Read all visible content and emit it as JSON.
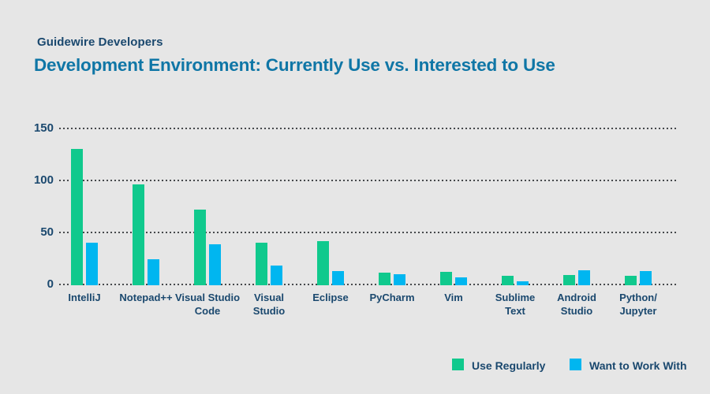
{
  "header": {
    "eyebrow": "Guidewire Developers",
    "title": "Development Environment: Currently Use vs. Interested to Use"
  },
  "colors": {
    "background": "#E6E6E6",
    "eyebrow_text": "#1A486E",
    "title_text": "#0F76A6",
    "axis_text": "#1A486E",
    "grid_dots": "#46494C",
    "series_green": "#10C98D",
    "series_blue": "#00B6F0"
  },
  "chart_data": {
    "type": "bar",
    "title": "Development Environment: Currently Use vs. Interested to Use",
    "subtitle": "Guidewire Developers",
    "categories": [
      "IntelliJ",
      "Notepad++",
      "Visual Studio Code",
      "Visual Studio",
      "Eclipse",
      "PyCharm",
      "Vim",
      "Sublime Text",
      "Android Studio",
      "Python/Jupyter"
    ],
    "category_label_lines": [
      [
        "IntelliJ"
      ],
      [
        "Notepad++"
      ],
      [
        "Visual Studio",
        "Code"
      ],
      [
        "Visual",
        "Studio"
      ],
      [
        "Eclipse"
      ],
      [
        "PyCharm"
      ],
      [
        "Vim"
      ],
      [
        "Sublime",
        "Text"
      ],
      [
        "Android",
        "Studio"
      ],
      [
        "Python/",
        "Jupyter"
      ]
    ],
    "series": [
      {
        "name": "Use Regularly",
        "color": "#10C98D",
        "values": [
          130,
          96,
          72,
          40,
          42,
          11,
          12,
          8,
          9,
          8
        ]
      },
      {
        "name": "Want to Work With",
        "color": "#00B6F0",
        "values": [
          40,
          24,
          39,
          18,
          13,
          10,
          7,
          3,
          14,
          13
        ]
      }
    ],
    "xlabel": "",
    "ylabel": "",
    "yticks": [
      0,
      50,
      100,
      150
    ],
    "ylim": [
      0,
      150
    ],
    "grid": "horizontal-dotted",
    "legend_position": "bottom-right"
  }
}
